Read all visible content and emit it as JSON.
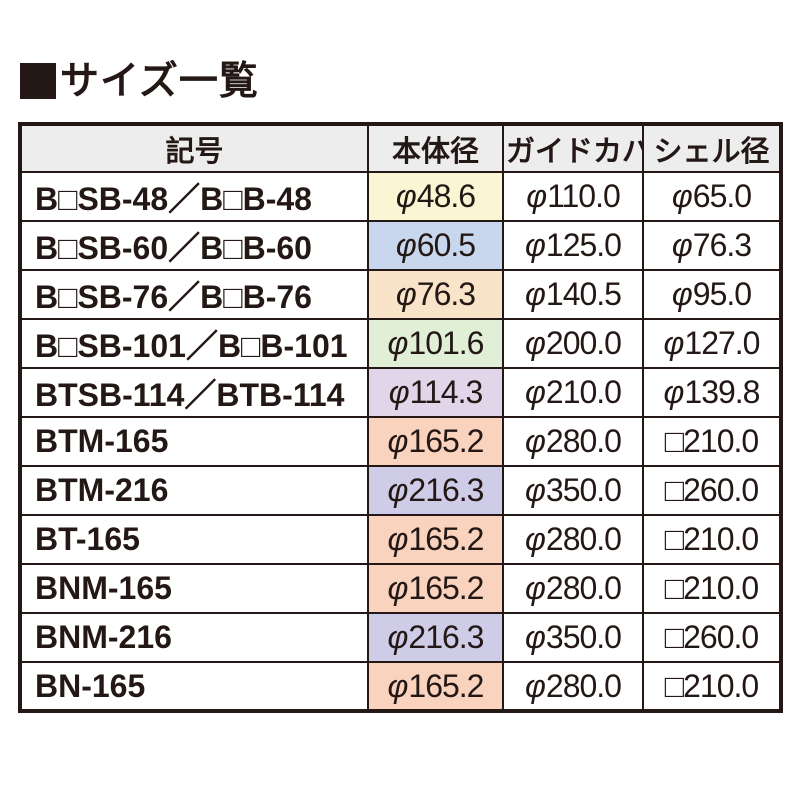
{
  "title": {
    "text": "サイズ一覧"
  },
  "colors": {
    "text": "#231815",
    "border": "#231815",
    "header_bg": "#ededed",
    "page_bg": "#ffffff",
    "cream": "#faf6d3",
    "light_blue": "#c9d7ee",
    "peach": "#fae4c9",
    "light_green": "#e1efd7",
    "lavender": "#e1d5e9",
    "salmon": "#f9d3bd",
    "periwinkle": "#cfcce7"
  },
  "table": {
    "headers": [
      "記号",
      "本体径",
      "ガイドカバー",
      "シェル径"
    ],
    "rows": [
      {
        "symbol": "B□SB-48／B□B-48",
        "body": "φ48.6",
        "body_bg": "#faf6d3",
        "guide": "φ110.0",
        "shell": "φ65.0"
      },
      {
        "symbol": "B□SB-60／B□B-60",
        "body": "φ60.5",
        "body_bg": "#c9d7ee",
        "guide": "φ125.0",
        "shell": "φ76.3"
      },
      {
        "symbol": "B□SB-76／B□B-76",
        "body": "φ76.3",
        "body_bg": "#fae4c9",
        "guide": "φ140.5",
        "shell": "φ95.0"
      },
      {
        "symbol": "B□SB-101／B□B-101",
        "body": "φ101.6",
        "body_bg": "#e1efd7",
        "guide": "φ200.0",
        "shell": "φ127.0"
      },
      {
        "symbol": "BTSB-114／BTB-114",
        "body": "φ114.3",
        "body_bg": "#e1d5e9",
        "guide": "φ210.0",
        "shell": "φ139.8"
      },
      {
        "symbol": "BTM-165",
        "body": "φ165.2",
        "body_bg": "#f9d3bd",
        "guide": "φ280.0",
        "shell": "□210.0"
      },
      {
        "symbol": "BTM-216",
        "body": "φ216.3",
        "body_bg": "#cfcce7",
        "guide": "φ350.0",
        "shell": "□260.0"
      },
      {
        "symbol": "BT-165",
        "body": "φ165.2",
        "body_bg": "#f9d3bd",
        "guide": "φ280.0",
        "shell": "□210.0"
      },
      {
        "symbol": "BNM-165",
        "body": "φ165.2",
        "body_bg": "#f9d3bd",
        "guide": "φ280.0",
        "shell": "□210.0"
      },
      {
        "symbol": "BNM-216",
        "body": "φ216.3",
        "body_bg": "#cfcce7",
        "guide": "φ350.0",
        "shell": "□260.0"
      },
      {
        "symbol": "BN-165",
        "body": "φ165.2",
        "body_bg": "#f9d3bd",
        "guide": "φ280.0",
        "shell": "□210.0"
      }
    ]
  }
}
